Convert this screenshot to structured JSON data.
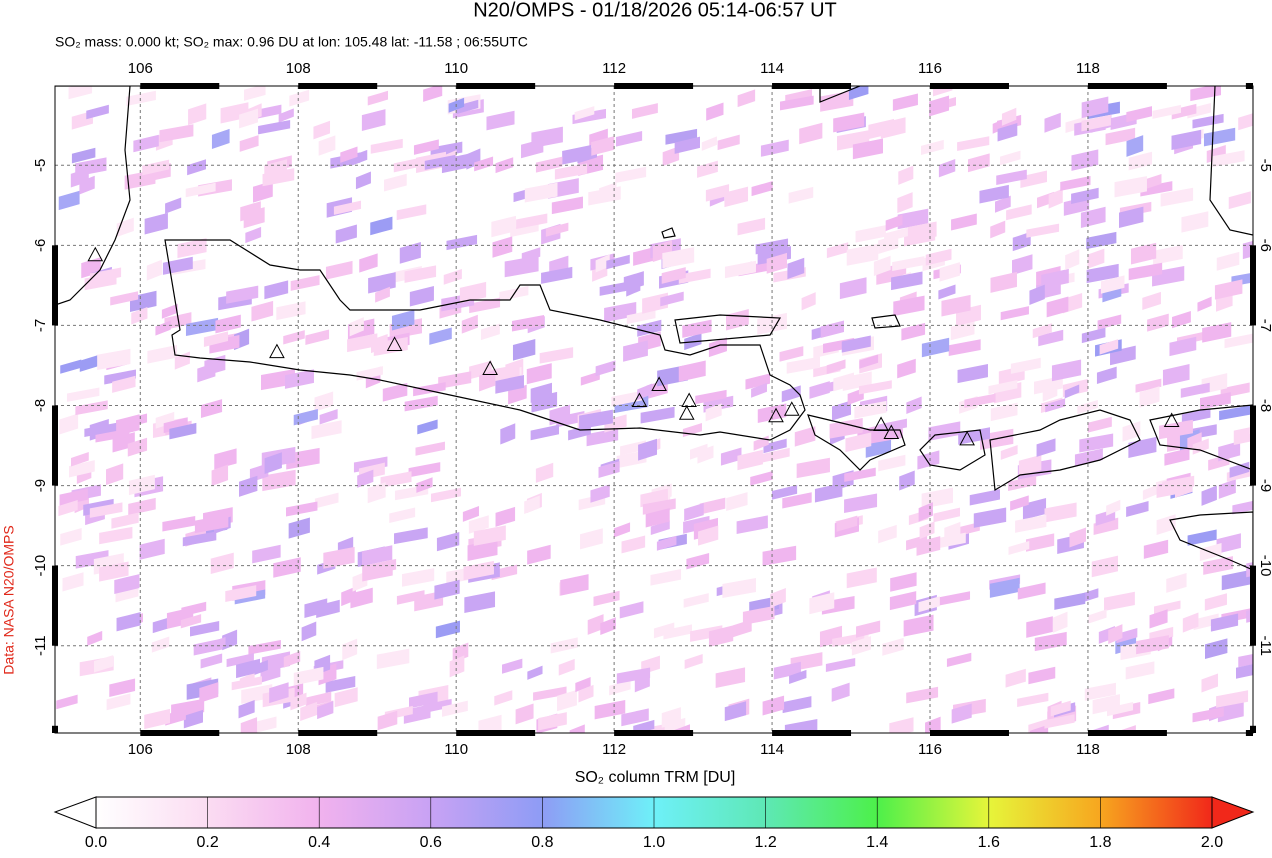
{
  "map": {
    "title": "N20/OMPS - 01/18/2026 05:14-06:57 UT",
    "subtitle": "SO₂ mass: 0.000 kt; SO₂ max: 0.96 DU at lon: 105.48 lat: -11.58 ; 06:55UTC",
    "credit": "Data: NASA N20/OMPS",
    "lonlim": [
      104.92,
      120.09
    ],
    "latlim": [
      -12.09,
      -4.01
    ],
    "lon_ticks": [
      106,
      108,
      110,
      112,
      114,
      116,
      118
    ],
    "lat_ticks": [
      -5,
      -6,
      -7,
      -8,
      -9,
      -10,
      -11
    ],
    "volcanoes": {
      "lon": [
        105.43,
        107.73,
        109.22,
        110.43,
        112.32,
        112.57,
        112.95,
        112.92,
        114.05,
        114.25,
        115.38,
        115.51,
        116.47,
        119.06
      ],
      "lat": [
        -6.13,
        -7.34,
        -7.25,
        -7.55,
        -7.95,
        -7.75,
        -7.95,
        -8.11,
        -8.14,
        -8.06,
        -8.25,
        -8.35,
        -8.43,
        -8.2
      ]
    },
    "colorbar": {
      "label": "SO₂ column TRM [DU]",
      "range": [
        0,
        2
      ],
      "ticks": [
        {
          "value": 0,
          "label": "0.0"
        },
        0.2,
        0.4,
        0.6,
        0.8,
        {
          "value": 1,
          "label": "1.0"
        },
        1.2,
        1.4,
        1.6,
        1.8,
        {
          "value": 2,
          "label": "2.0"
        }
      ]
    }
  }
}
